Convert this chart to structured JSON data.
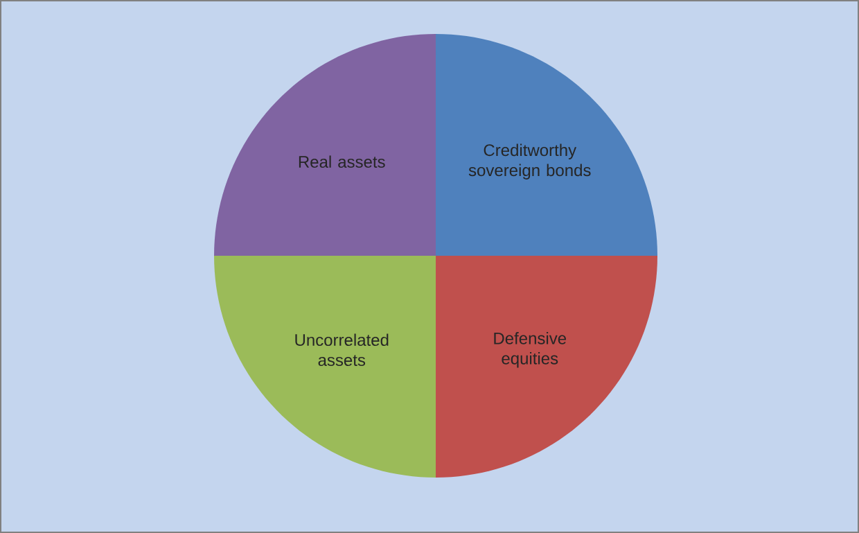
{
  "chart_data": {
    "type": "pie",
    "categories": [
      "Creditworthy sovereign bonds",
      "Defensive equities",
      "Uncorrelated assets",
      "Real assets"
    ],
    "values": [
      25,
      25,
      25,
      25
    ],
    "colors": [
      "#4f81bd",
      "#c0504d",
      "#9bbb59",
      "#8064a2"
    ]
  }
}
